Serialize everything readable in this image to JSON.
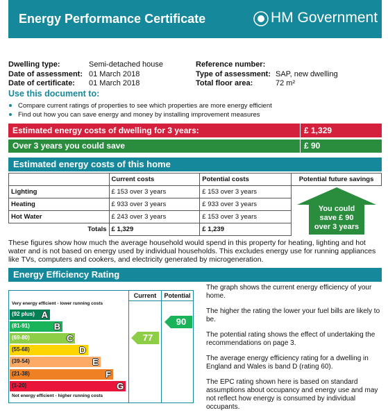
{
  "header": {
    "title": "Energy Performance Certificate",
    "logo": "HM Government"
  },
  "details": {
    "left": [
      {
        "label": "Dwelling type:",
        "value": "Semi-detached house"
      },
      {
        "label": "Date of assessment:",
        "value": "01 March 2018"
      },
      {
        "label": "Date of certificate:",
        "value": "01 March 2018"
      }
    ],
    "right": [
      {
        "label": "Reference number:"
      },
      {
        "label": "Type of assessment:",
        "value": "SAP, new dwelling"
      },
      {
        "label": "Total floor area:",
        "value": "72 m²"
      }
    ]
  },
  "usage": {
    "heading": "Use this document to:",
    "bullets": [
      "Compare current ratings of properties to see which properties are more energy efficient",
      "Find out how you can save energy and money by installing improvement measures"
    ]
  },
  "summary": {
    "cost": {
      "label": "Estimated energy costs of dwelling for 3 years:",
      "value": "£ 1,329"
    },
    "saving": {
      "label": "Over 3 years you could save",
      "value": "£ 90"
    }
  },
  "costs": {
    "heading": "Estimated energy costs of this home",
    "columns": [
      "Current costs",
      "Potential costs",
      "Potential future savings"
    ],
    "rows": [
      [
        "Lighting",
        "£ 153 over 3 years",
        "£ 153 over 3 years"
      ],
      [
        "Heating",
        "£ 933 over 3 years",
        "£ 933 over 3 years"
      ],
      [
        "Hot Water",
        "£ 243 over 3 years",
        "£ 153 over 3 years"
      ]
    ],
    "totals": [
      "Totals",
      "£ 1,329",
      "£ 1,239"
    ],
    "savings": [
      "You could",
      "save £ 90",
      "over 3 years"
    ],
    "note": "These figures show how much the average household would spend in this property for heating, lighting and hot water and is not based on energy used by individual households. This excludes energy use for running appliances like TVs, computers and cookers, and electricity generated by microgeneration."
  },
  "rating": {
    "heading": "Energy Efficiency Rating",
    "columns": [
      "Current",
      "Potential"
    ],
    "top_label": "Very energy efficient - lower running costs",
    "bottom_label": "Not energy efficient - higher running costs",
    "bands": [
      {
        "range": "(92 plus)",
        "letter": "A",
        "color": "#008054"
      },
      {
        "range": "(81-91)",
        "letter": "B",
        "color": "#19b459"
      },
      {
        "range": "(69-80)",
        "letter": "C",
        "color": "#8dce46"
      },
      {
        "range": "(55-68)",
        "letter": "D",
        "color": "#ffd500"
      },
      {
        "range": "(39-54)",
        "letter": "E",
        "color": "#fcaa65"
      },
      {
        "range": "(21-38)",
        "letter": "F",
        "color": "#ef8023"
      },
      {
        "range": "(1-20)",
        "letter": "G",
        "color": "#e9153b"
      }
    ],
    "current": 77,
    "potential": 90,
    "notes": [
      "The graph shows the current energy efficiency of your home.",
      "The higher the rating the lower your fuel bills are likely to be.",
      "The potential rating shows the effect of undertaking the recommendations on page 3.",
      "The average energy efficiency rating for a dwelling in England and Wales is band D (rating 60).",
      "The EPC rating shown here is based on standard assumptions about occupancy and energy use and may not reflect how energy is consumed by individual occupants."
    ]
  }
}
